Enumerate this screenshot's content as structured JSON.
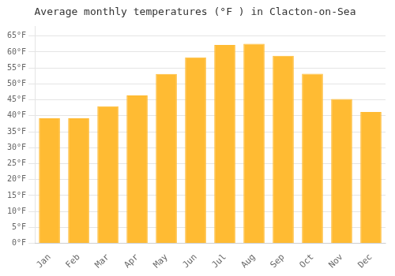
{
  "chart_data": {
    "type": "bar",
    "title": "Average monthly temperatures (°F ) in Clacton-on-Sea",
    "categories": [
      "Jan",
      "Feb",
      "Mar",
      "Apr",
      "May",
      "Jun",
      "Jul",
      "Aug",
      "Sep",
      "Oct",
      "Nov",
      "Dec"
    ],
    "values": [
      39.2,
      39.2,
      43.0,
      46.4,
      53.1,
      58.3,
      62.2,
      62.6,
      58.8,
      53.2,
      45.3,
      41.2
    ],
    "color": "#FFBB33",
    "ylim": [
      0,
      68
    ],
    "yticks": [
      {
        "value": 0,
        "label": "0°F"
      },
      {
        "value": 5,
        "label": "5°F"
      },
      {
        "value": 10,
        "label": "10°F"
      },
      {
        "value": 15,
        "label": "15°F"
      },
      {
        "value": 20,
        "label": "20°F"
      },
      {
        "value": 25,
        "label": "25°F"
      },
      {
        "value": 30,
        "label": "30°F"
      },
      {
        "value": 35,
        "label": "35°F"
      },
      {
        "value": 40,
        "label": "40°F"
      },
      {
        "value": 45,
        "label": "45°F"
      },
      {
        "value": 50,
        "label": "50°F"
      },
      {
        "value": 55,
        "label": "55°F"
      },
      {
        "value": 60,
        "label": "60°F"
      },
      {
        "value": 65,
        "label": "65°F"
      }
    ],
    "grid": true
  }
}
